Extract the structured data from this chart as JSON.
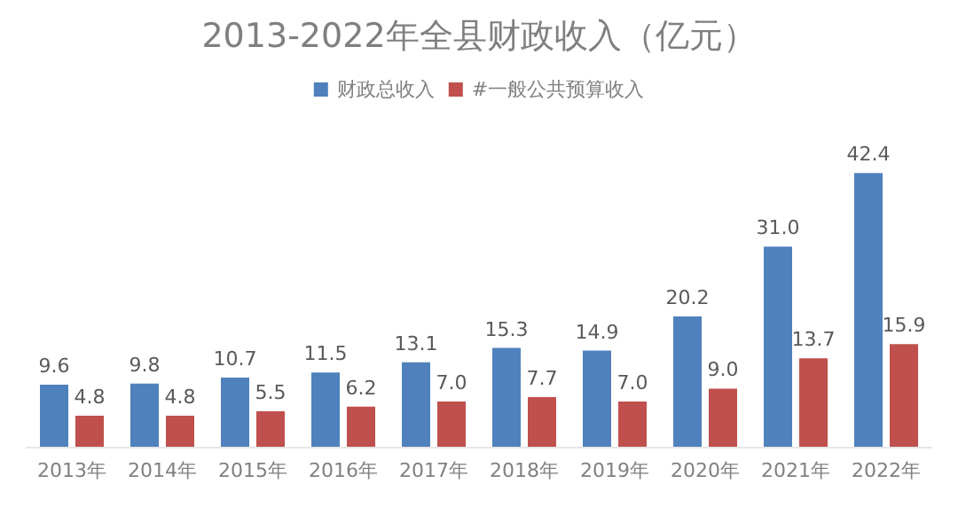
{
  "chart_data": {
    "type": "bar",
    "title": "2013-2022年全县财政收入（亿元）",
    "categories": [
      "2013年",
      "2014年",
      "2015年",
      "2016年",
      "2017年",
      "2018年",
      "2019年",
      "2020年",
      "2021年",
      "2022年"
    ],
    "series": [
      {
        "name": "财政总收入",
        "color": "#4f81bd",
        "values": [
          9.6,
          9.8,
          10.7,
          11.5,
          13.1,
          15.3,
          14.9,
          20.2,
          31.0,
          42.4
        ],
        "value_labels": [
          "9.6",
          "9.8",
          "10.7",
          "11.5",
          "13.1",
          "15.3",
          "14.9",
          "20.2",
          "31.0",
          "42.4"
        ]
      },
      {
        "name": "#一般公共预算收入",
        "color": "#c0504d",
        "values": [
          4.8,
          4.8,
          5.5,
          6.2,
          7.0,
          7.7,
          7.0,
          9.0,
          13.7,
          15.9
        ],
        "value_labels": [
          "4.8",
          "4.8",
          "5.5",
          "6.2",
          "7.0",
          "7.7",
          "7.0",
          "9.0",
          "13.7",
          "15.9"
        ]
      }
    ],
    "legend": "top"
  }
}
